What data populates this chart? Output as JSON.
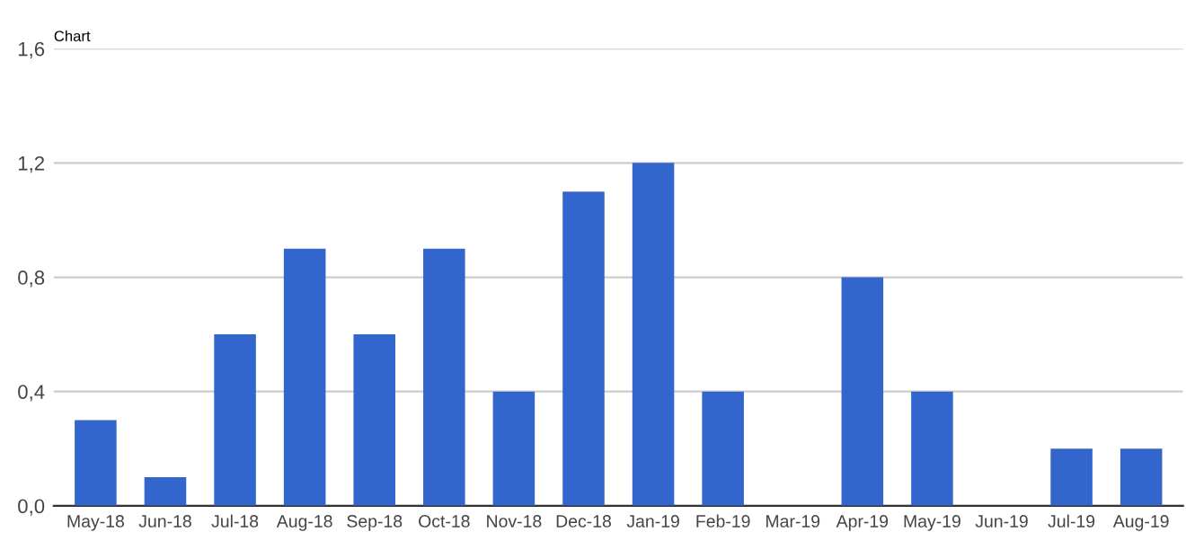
{
  "chart_data": {
    "type": "bar",
    "title": "Chart",
    "categories": [
      "May-18",
      "Jun-18",
      "Jul-18",
      "Aug-18",
      "Sep-18",
      "Oct-18",
      "Nov-18",
      "Dec-18",
      "Jan-19",
      "Feb-19",
      "Mar-19",
      "Apr-19",
      "May-19",
      "Jun-19",
      "Jul-19",
      "Aug-19"
    ],
    "values": [
      0.3,
      0.1,
      0.6,
      0.9,
      0.6,
      0.9,
      0.4,
      1.1,
      1.2,
      0.4,
      0,
      0.8,
      0.4,
      0,
      0.2,
      0.2
    ],
    "color": "#3366cc",
    "ylim": [
      0,
      1.6
    ],
    "yticks": [
      {
        "value": 0,
        "label": "0,0"
      },
      {
        "value": 0.4,
        "label": "0,4"
      },
      {
        "value": 0.8,
        "label": "0,8"
      },
      {
        "value": 1.2,
        "label": "1,2"
      },
      {
        "value": 1.6,
        "label": "1,6"
      }
    ],
    "grid": "y"
  }
}
